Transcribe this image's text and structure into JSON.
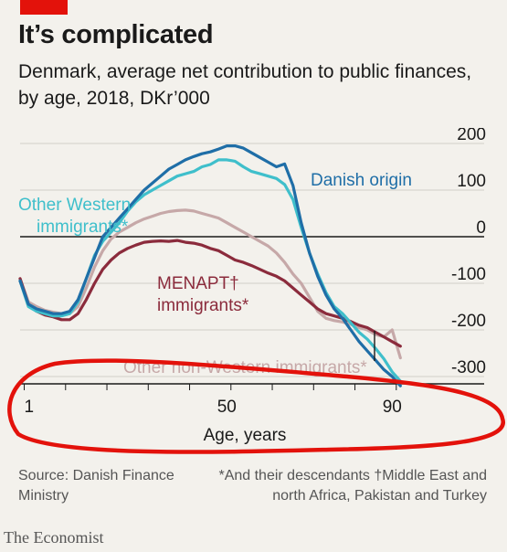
{
  "header": {
    "title": "It’s complicated",
    "subtitle_bold": "Denmark, average net contribution to public finances,",
    "subtitle_rest": " by age, 2018, DKr’000"
  },
  "footer": {
    "source": "Source: Danish Finance Ministry",
    "notes": "*And their descendants  †Middle East and north Africa, Pakistan and Turkey",
    "brand": "The Economist"
  },
  "colors": {
    "danish_origin": "#1f6ea7",
    "other_western": "#3fbfcb",
    "non_western": "#c6a8a8",
    "menapt": "#8b2b3c",
    "axis": "#1a1a1a",
    "grid": "#d0cec8",
    "annotation_red": "#e3120b"
  },
  "chart_data": {
    "type": "line",
    "title": "It’s complicated",
    "subtitle": "Denmark, average net contribution to public finances, by age, 2018, DKr’000",
    "xlabel": "Age, years",
    "ylabel": "",
    "xlim": [
      0,
      99
    ],
    "ylim": [
      -300,
      200
    ],
    "x_ticks": [
      1,
      50,
      90
    ],
    "y_ticks": [
      200,
      100,
      0,
      -100,
      -200,
      -300
    ],
    "grid": true,
    "x": [
      0,
      2,
      4,
      6,
      8,
      10,
      12,
      14,
      16,
      18,
      20,
      22,
      24,
      26,
      28,
      30,
      32,
      34,
      36,
      38,
      40,
      42,
      44,
      46,
      48,
      50,
      52,
      54,
      56,
      58,
      60,
      62,
      64,
      66,
      68,
      70,
      72,
      74,
      76,
      78,
      80,
      82,
      84,
      86,
      88,
      90,
      92
    ],
    "series": [
      {
        "name": "Danish origin",
        "values": [
          -95,
          -145,
          -155,
          -160,
          -165,
          -165,
          -160,
          -135,
          -90,
          -45,
          0,
          20,
          40,
          60,
          80,
          100,
          115,
          130,
          145,
          155,
          165,
          172,
          178,
          182,
          188,
          195,
          195,
          190,
          180,
          170,
          160,
          150,
          156,
          110,
          30,
          -35,
          -85,
          -125,
          -155,
          -175,
          -200,
          -225,
          -245,
          -265,
          -285,
          -300,
          -320
        ]
      },
      {
        "name": "Other Western immigrants*",
        "values": [
          -95,
          -150,
          -160,
          -165,
          -170,
          -170,
          -165,
          -140,
          -90,
          -40,
          -10,
          10,
          30,
          55,
          75,
          90,
          100,
          110,
          120,
          130,
          135,
          140,
          150,
          155,
          165,
          165,
          162,
          150,
          140,
          135,
          130,
          125,
          112,
          80,
          20,
          -35,
          -80,
          -120,
          -150,
          -165,
          -185,
          -205,
          -220,
          -240,
          -262,
          -290,
          -310
        ]
      },
      {
        "name": "Other non-Western immigrants*",
        "values": [
          -90,
          -140,
          -150,
          -158,
          -162,
          -165,
          -165,
          -150,
          -110,
          -65,
          -30,
          -5,
          10,
          20,
          30,
          38,
          44,
          50,
          54,
          56,
          57,
          55,
          50,
          45,
          40,
          30,
          20,
          10,
          0,
          -10,
          -20,
          -35,
          -55,
          -80,
          -100,
          -130,
          -160,
          -175,
          -180,
          -183,
          -188,
          -195,
          -200,
          -210,
          -215,
          -200,
          -260
        ]
      },
      {
        "name": "MENAPT† immigrants*",
        "values": [
          -90,
          -145,
          -160,
          -168,
          -172,
          -178,
          -178,
          -165,
          -135,
          -100,
          -70,
          -50,
          -35,
          -25,
          -18,
          -12,
          -10,
          -9,
          -10,
          -8,
          -12,
          -14,
          -18,
          -25,
          -30,
          -40,
          -50,
          -55,
          -62,
          -70,
          -78,
          -85,
          -95,
          -110,
          -125,
          -140,
          -155,
          -165,
          -170,
          -175,
          -182,
          -190,
          -195,
          -205,
          -215,
          -225,
          -235
        ]
      }
    ],
    "series_labels": [
      {
        "line1": "Danish origin",
        "line2": ""
      },
      {
        "line1": "Other Western",
        "line2": "immigrants*"
      },
      {
        "line1": "Other non-Western immigrants*",
        "line2": ""
      },
      {
        "line1": "MENAPT†",
        "line2": "immigrants*"
      }
    ],
    "annotation": "red hand-drawn ellipse around the age axis"
  }
}
